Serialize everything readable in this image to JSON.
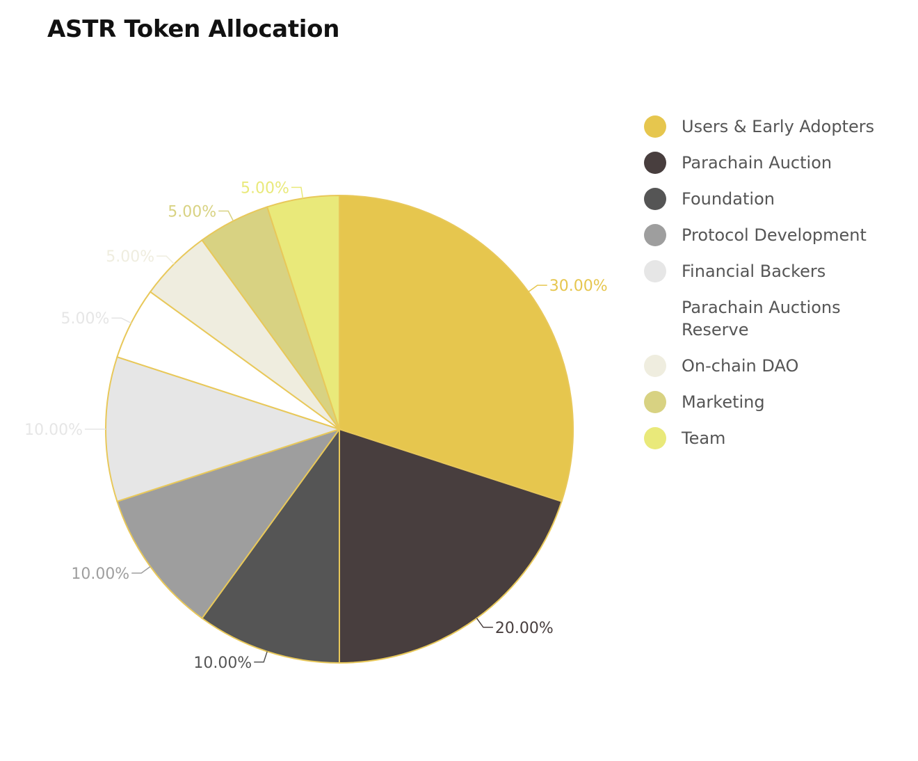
{
  "chart_data": {
    "type": "pie",
    "title": "ASTR Token Allocation",
    "categories": [
      "Users & Early Adopters",
      "Parachain Auction",
      "Foundation",
      "Protocol Development",
      "Financial Backers",
      "Parachain Auctions Reserve",
      "On-chain DAO",
      "Marketing",
      "Team"
    ],
    "values": [
      30,
      20,
      10,
      10,
      10,
      5,
      5,
      5,
      5
    ],
    "labels": [
      "30.00%",
      "20.00%",
      "10.00%",
      "10.00%",
      "10.00%",
      "5.00%",
      "5.00%",
      "5.00%",
      "5.00%"
    ],
    "colors": [
      "#e6c64e",
      "#483e3e",
      "#555555",
      "#9e9e9e",
      "#e6e6e6",
      "#ffffff",
      "#efeddf",
      "#d8d282",
      "#e9e97a"
    ],
    "label_colors": [
      "#e6c64e",
      "#483e3e",
      "#555555",
      "#9e9e9e",
      "#e6e6e6",
      "#ffffff",
      "#efeddf",
      "#d8d282",
      "#e9e97a"
    ],
    "border_color": "#e8c85a",
    "legend_position": "right",
    "start": "top",
    "direction": "clockwise"
  }
}
